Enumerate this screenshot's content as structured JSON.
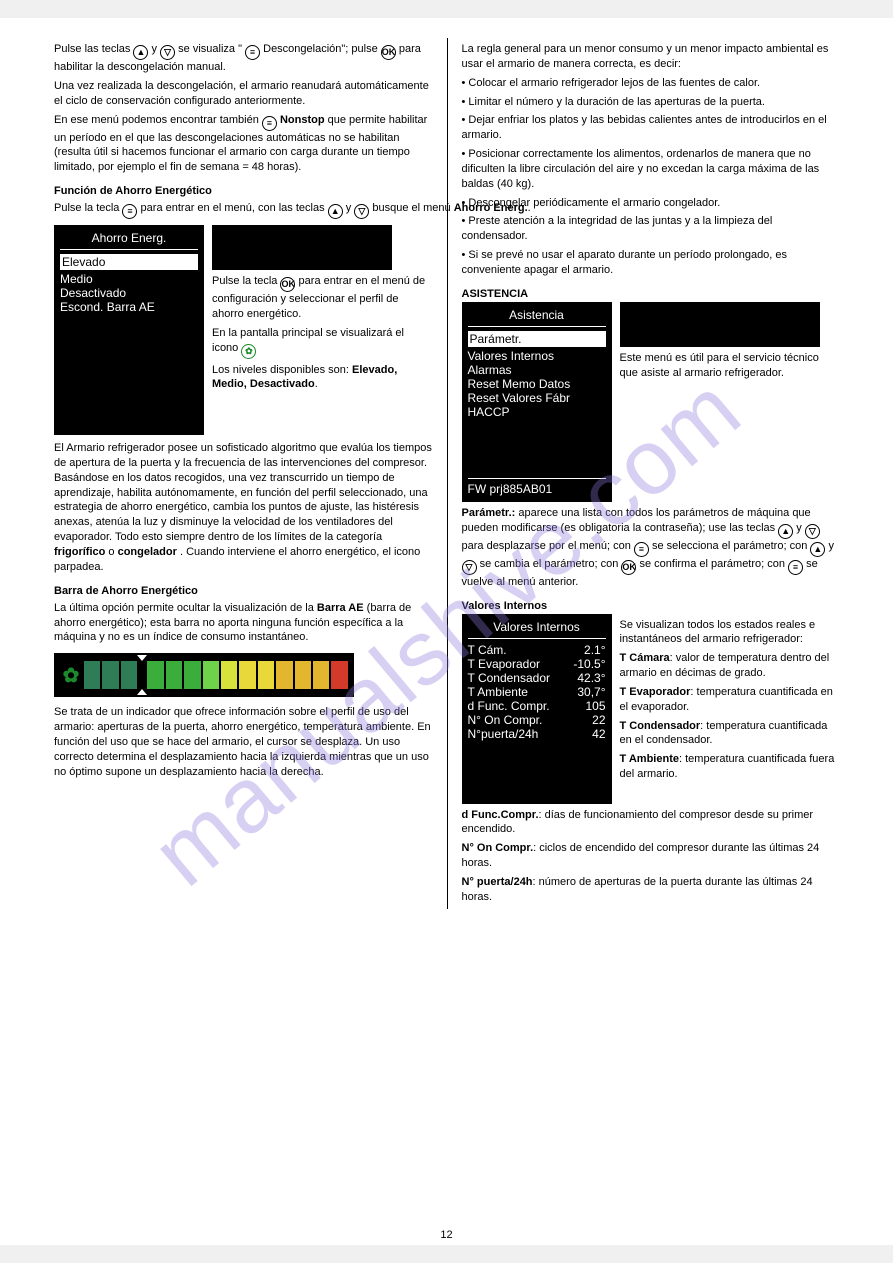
{
  "watermark": "manualshive.com",
  "left": {
    "p1a": "Pulse las teclas ",
    "p1b": " y ",
    "p1c": " se visualiza \"",
    "p1d": " Descongelación\"; pulse ",
    "p1e": " para habilitar la descongelación manual.",
    "p2": "Una vez realizada la descongelación, el armario reanudará automáticamente el ciclo de conservación configurado anteriormente.",
    "p3a": "En ese menú podemos encontrar también ",
    "p3b": " Nonstop",
    "p3c": " que permite habilitar un período en el que las descongelaciones automáticas no se habilitan (resulta útil si hacemos funcionar el armario con carga durante un tiempo limitado, por ejemplo el fin de semana = 48 horas).",
    "h_energy": "Función de Ahorro Energético",
    "pe1a": "Pulse la tecla ",
    "pe1b": " para entrar en el menú, con las teclas ",
    "pe1c": " y ",
    "pe1d": " busque el menú ",
    "pe1e": "Ahorro Energ.",
    "energy_menu": {
      "title": "Ahorro Energ.",
      "items": [
        "Elevado",
        "Medio",
        "Desactivado",
        "Escond. Barra AE"
      ]
    },
    "pe2a": "Pulse la tecla ",
    "pe2b": " para entrar en el menú de configuración y seleccionar el perfil de ahorro energético.",
    "pe3": "En la pantalla principal se visualizará el icono",
    "pe4a": "Los niveles disponibles son: ",
    "pe4b": "Elevado, Medio, Desactivado",
    "pe5a": "El Armario refrigerador posee un sofisticado algoritmo que evalúa los tiempos de apertura de la puerta y la frecuencia de las intervenciones del compresor. Basándose en los datos recogidos, una vez transcurrido un tiempo de aprendizaje, habilita autónomamente, en función del perfil seleccionado, una estrategia de ahorro energético, cambia los puntos de ajuste, las histéresis anexas, atenúa la luz y disminuye la velocidad de los ventiladores del evaporador. Todo esto siempre dentro de los límites de la categoría ",
    "pe5b": "frigorífico",
    "pe5c": " o ",
    "pe5d": "congelador",
    "pe5e": ". Cuando interviene el ahorro energético, el icono parpadea.",
    "h_bar": "Barra de Ahorro Energético",
    "pb1a": "La última opción permite ocultar la visualización de la ",
    "pb1b": "Barra AE",
    "pb1c": " (barra de ahorro energético); esta barra no aporta ninguna función específica a la máquina y no es un índice de consumo instantáneo.",
    "bar_colors": [
      "#2e7d56",
      "#2e7d56",
      "#2e7d56",
      "#3bad3b",
      "#3bad3b",
      "#3bad3b",
      "#6ed24a",
      "#d7e23d",
      "#e9d83a",
      "#e9d83a",
      "#e2b62e",
      "#e2b62e",
      "#e2b62e",
      "#d43a2a"
    ],
    "bar_cursor_after": 3,
    "pb2": "Se trata de un indicador que ofrece información sobre el perfil de uso del armario: aperturas de la puerta, ahorro energético, temperatura ambiente. En función del uso que se hace del armario, el cursor se desplaza. Un uso correcto determina el desplazamiento hacia la izquierda mientras que un uso no óptimo supone un desplazamiento hacia la derecha."
  },
  "right": {
    "p1a": "La regla general para un menor consumo y un menor impacto ambiental es usar el armario de manera correcta, es decir:",
    "li1": "Colocar el armario refrigerador lejos de las fuentes de calor.",
    "li2": "Limitar el número y la duración de las aperturas de la puerta.",
    "li3": "Dejar enfriar los platos y las bebidas calientes antes de introducirlos en el armario.",
    "li4": "Posicionar correctamente los alimentos, ordenarlos de manera que no dificulten la libre circulación del aire y no excedan la carga máxima de las baldas (40 kg).",
    "li5": "Descongelar periódicamente el armario congelador.",
    "li6": "Preste atención a la integridad de las juntas y a la limpieza del condensador.",
    "li7": "Si se prevé no usar el aparato durante un período prolongado, es conveniente apagar el armario.",
    "h_asist": "ASISTENCIA",
    "asist_menu": {
      "title": "Asistencia",
      "items": [
        "Parámetr.",
        "Valores Internos",
        "Alarmas",
        "Reset Memo Datos",
        "Reset Valores Fábr",
        "HACCP"
      ],
      "footer": "FW prj885AB01"
    },
    "pa1": "Este menú es útil para el servicio técnico que asiste al armario refrigerador.",
    "pa2a": "Parámetr.:",
    "pa2b": " aparece una lista con todos los parámetros de máquina que pueden modificarse (es obligatoria la contraseña); use las teclas ",
    "pa2c": " y ",
    "pa2d": " para desplazarse por el menú; con ",
    "pa2e": " se selecciona el parámetro; con ",
    "pa2f": " y ",
    "pa2g": " se cambia el parámetro; con ",
    "pa2h": " se confirma el parámetro; con ",
    "pa2i": " se vuelve al menú anterior.",
    "h_vi": "Valores Internos",
    "vi_menu": {
      "title": "Valores Internos",
      "rows": [
        [
          "T Cám.",
          "2.1°"
        ],
        [
          "T Evaporador",
          "-10.5°"
        ],
        [
          "T Condensador",
          "42.3°"
        ],
        [
          "T Ambiente",
          "30,7°"
        ],
        [
          "d Func. Compr.",
          "105"
        ],
        [
          "N° On Compr.",
          "22"
        ],
        [
          "N°puerta/24h",
          "42"
        ]
      ]
    },
    "pv1": "Se visualizan todos los estados reales e instantáneos del armario refrigerador:",
    "pv2a": "T Cámara",
    "pv2b": ": valor de temperatura dentro del armario en décimas de grado.",
    "pv3a": "T Evaporador",
    "pv3b": ": temperatura cuantificada en el evaporador.",
    "pv4a": "T Condensador",
    "pv4b": ": temperatura cuantificada en el condensador.",
    "pv5a": "T Ambiente",
    "pv5b": ": temperatura cuantificada fuera del armario.",
    "pv6a": "d Func.Compr.",
    "pv6b": ": días de funcionamiento del compresor desde su primer encendido.",
    "pv7a": "N° On Compr.",
    "pv7b": ": ciclos de encendido del compresor durante las últimas 24 horas.",
    "pv8a": "N° puerta/24h",
    "pv8b": ": número de aperturas de la puerta durante las últimas 24 horas."
  },
  "footer_page": "12"
}
